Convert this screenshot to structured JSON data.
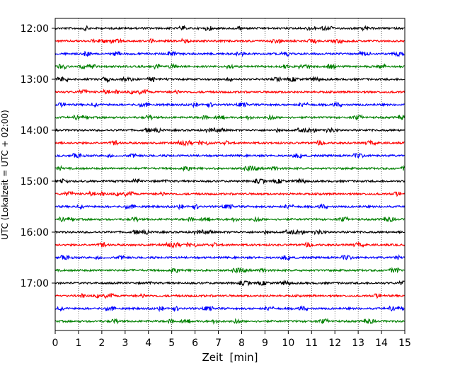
{
  "chart_data": {
    "type": "line",
    "title": "",
    "xlabel": "Zeit  [min]",
    "ylabel": "UTC (Lokalzeit = UTC + 02:00)",
    "xlim": [
      0,
      15
    ],
    "x_ticks": [
      "0",
      "1",
      "2",
      "3",
      "4",
      "5",
      "6",
      "7",
      "8",
      "9",
      "10",
      "11",
      "12",
      "13",
      "14",
      "15"
    ],
    "y_ticks": [
      "12:00",
      "13:00",
      "14:00",
      "15:00",
      "16:00",
      "17:00"
    ],
    "grid": "vertical dotted at each minute",
    "row_interval_minutes": 15,
    "row_start": "12:00",
    "row_count": 24,
    "row_colors": [
      "#000000",
      "#ff0000",
      "#0000ff",
      "#008000"
    ]
  }
}
